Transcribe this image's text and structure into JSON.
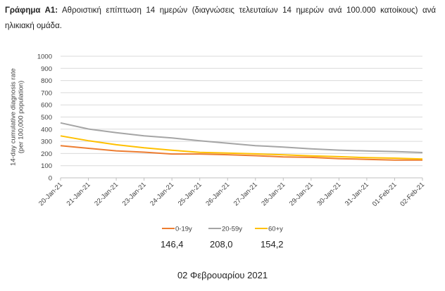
{
  "caption": {
    "label": "Γράφημα Α1:",
    "text": " Αθροιστική επίπτωση 14 ημερών (διαγνώσεις τελευταίων 14 ημερών ανά 100.000 κατοίκους) ανά ηλικιακή ομάδα."
  },
  "chart_data": {
    "type": "line",
    "categories": [
      "20-Jan-21",
      "21-Jan-21",
      "22-Jan-21",
      "23-Jan-21",
      "24-Jan-21",
      "25-Jan-21",
      "26-Jan-21",
      "27-Jan-21",
      "28-Jan-21",
      "29-Jan-21",
      "30-Jan-21",
      "31-Jan-21",
      "01-Feb-21",
      "02-Feb-21"
    ],
    "series": [
      {
        "name": "0-19y",
        "color": "#ED7D31",
        "values": [
          265,
          243,
          222,
          211,
          196,
          196,
          190,
          182,
          172,
          168,
          158,
          152,
          146,
          146.4
        ]
      },
      {
        "name": "20-59y",
        "color": "#A5A5A5",
        "values": [
          452,
          402,
          371,
          345,
          328,
          305,
          285,
          265,
          253,
          239,
          228,
          221,
          216,
          208.0
        ]
      },
      {
        "name": "60+y",
        "color": "#FFC000",
        "values": [
          345,
          305,
          272,
          247,
          227,
          210,
          204,
          197,
          189,
          181,
          174,
          166,
          162,
          154.2
        ]
      }
    ],
    "ylabel": "14-day cumulative diagnosis rate\n(per 100,000 population)",
    "ylim": [
      0,
      1000
    ],
    "yticks": [
      0,
      100,
      200,
      300,
      400,
      500,
      600,
      700,
      800,
      900,
      1000
    ],
    "grid": true,
    "legend_position": "bottom"
  },
  "summary": {
    "values": [
      "146,4",
      "208,0",
      "154,2"
    ],
    "date": "02 Φεβρουαρίου 2021"
  }
}
